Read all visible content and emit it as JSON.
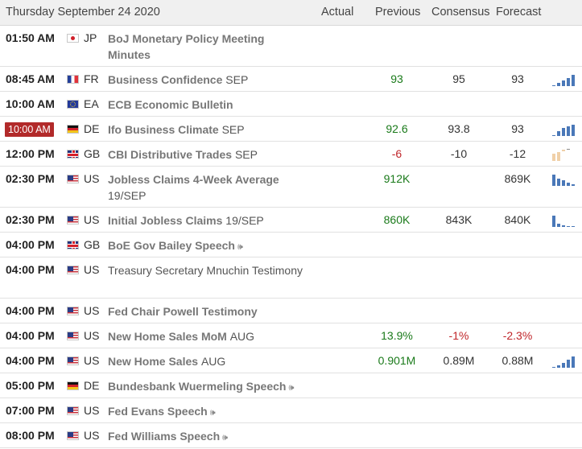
{
  "header": {
    "date": "Thursday September 24 2020",
    "actual": "Actual",
    "previous": "Previous",
    "consensus": "Consensus",
    "forecast": "Forecast"
  },
  "colors": {
    "accent": "#b22a2a",
    "positive": "#1a7a1a",
    "negative": "#c0262a",
    "spark_blue": "#4a78b8",
    "spark_tan": "#f0d0a8"
  },
  "rows": [
    {
      "time": "01:50 AM",
      "country": "JP",
      "flag": "jp",
      "event": "BoJ Monetary Policy Meeting Minutes",
      "period": ""
    },
    {
      "time": "08:45 AM",
      "country": "FR",
      "flag": "fr",
      "event": "Business Confidence",
      "period": "SEP",
      "previous": "93",
      "consensus": "95",
      "forecast": "93"
    },
    {
      "time": "10:00 AM",
      "country": "EA",
      "flag": "ea",
      "event": "ECB Economic Bulletin",
      "period": ""
    },
    {
      "time": "10:00 AM",
      "country": "DE",
      "flag": "de",
      "event": "Ifo Business Climate",
      "period": "SEP",
      "previous": "92.6",
      "consensus": "93.8",
      "forecast": "93"
    },
    {
      "time": "12:00 PM",
      "country": "GB",
      "flag": "gb",
      "event": "CBI Distributive Trades",
      "period": "SEP",
      "previous": "-6",
      "consensus": "-10",
      "forecast": "-12"
    },
    {
      "time": "02:30 PM",
      "country": "US",
      "flag": "us",
      "event": "Jobless Claims 4-Week Average",
      "period": "19/SEP",
      "previous": "912K",
      "consensus": "",
      "forecast": "869K"
    },
    {
      "time": "02:30 PM",
      "country": "US",
      "flag": "us",
      "event": "Initial Jobless Claims",
      "period": "19/SEP",
      "previous": "860K",
      "consensus": "843K",
      "forecast": "840K"
    },
    {
      "time": "04:00 PM",
      "country": "GB",
      "flag": "gb",
      "event": "BoE Gov Bailey Speech",
      "period": ""
    },
    {
      "time": "04:00 PM",
      "country": "US",
      "flag": "us",
      "event": "Treasury Secretary Mnuchin Testimony",
      "period": ""
    },
    {
      "time": "04:00 PM",
      "country": "US",
      "flag": "us",
      "event": "Fed Chair Powell Testimony",
      "period": ""
    },
    {
      "time": "04:00 PM",
      "country": "US",
      "flag": "us",
      "event": "New Home Sales MoM",
      "period": "AUG",
      "previous": "13.9%",
      "consensus": "-1%",
      "forecast": "-2.3%"
    },
    {
      "time": "04:00 PM",
      "country": "US",
      "flag": "us",
      "event": "New Home Sales",
      "period": "AUG",
      "previous": "0.901M",
      "consensus": "0.89M",
      "forecast": "0.88M"
    },
    {
      "time": "05:00 PM",
      "country": "DE",
      "flag": "de",
      "event": "Bundesbank Wuermeling Speech",
      "period": ""
    },
    {
      "time": "07:00 PM",
      "country": "US",
      "flag": "us",
      "event": "Fed Evans Speech",
      "period": ""
    },
    {
      "time": "08:00 PM",
      "country": "US",
      "flag": "us",
      "event": "Fed Williams Speech",
      "period": ""
    }
  ],
  "icons": {
    "speaker": "speaker-icon",
    "sparkline": "sparkline-icon"
  }
}
